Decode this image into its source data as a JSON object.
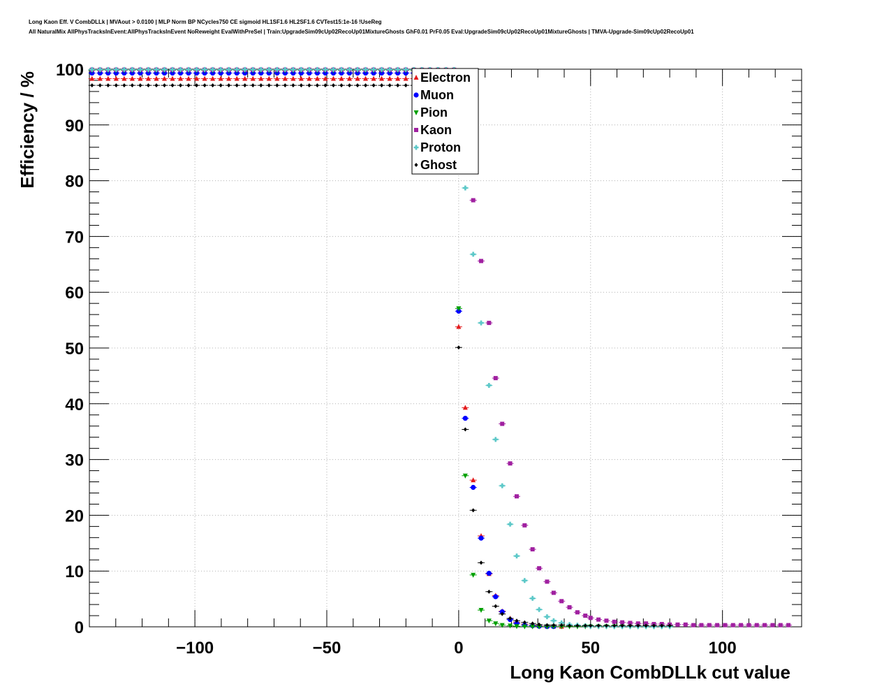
{
  "title_line1": "Long Kaon Eff. V CombDLLk | MVAout > 0.0100 | MLP Norm BP NCycles750 CE sigmoid HL1SF1.6 HL2SF1.6 CVTest15:1e-16 !UseReg",
  "title_line2": "All NaturalMix AllPhysTracksInEvent:AllPhysTracksInEvent NoReweight EvalWithPreSel | Train:UpgradeSim09cUp02RecoUp01MixtureGhosts GhF0.01 PrF0.05 Eval:UpgradeSim09cUp02RecoUp01MixtureGhosts | TMVA-Upgrade-Sim09cUp02RecoUp01",
  "chart_data": {
    "type": "scatter",
    "xlabel": "Long Kaon CombDLLk cut value",
    "ylabel": "Efficiency / %",
    "xlim": [
      -140,
      130
    ],
    "ylim": [
      0,
      100
    ],
    "x_ticks": [
      -100,
      -50,
      0,
      50,
      100
    ],
    "x_tick_labels": [
      "−100",
      "−50",
      "0",
      "50",
      "100"
    ],
    "y_ticks": [
      0,
      10,
      20,
      30,
      40,
      50,
      60,
      70,
      80,
      90,
      100
    ],
    "y_tick_labels": [
      "0",
      "10",
      "20",
      "30",
      "40",
      "50",
      "60",
      "70",
      "80",
      "90",
      "100"
    ],
    "grid": true,
    "legend_position": "top-center",
    "series": [
      {
        "name": "Electron",
        "color": "#e31a1c",
        "marker": "triangle-up",
        "flat_value": 98.3,
        "flat_until": -2.5,
        "points": [
          [
            0,
            53.8
          ],
          [
            2.5,
            39.3
          ],
          [
            5.5,
            26.3
          ],
          [
            8.5,
            16.3
          ],
          [
            11.5,
            9.5
          ],
          [
            14,
            5.6
          ],
          [
            16.5,
            2.8
          ],
          [
            19.5,
            1.5
          ],
          [
            22,
            0.8
          ],
          [
            25,
            0.5
          ],
          [
            28,
            0.3
          ],
          [
            30.5,
            0.2
          ],
          [
            33.5,
            0.1
          ],
          [
            36,
            0.1
          ],
          [
            39,
            0.05
          ]
        ]
      },
      {
        "name": "Muon",
        "color": "#0000ff",
        "marker": "circle",
        "flat_value": 99.3,
        "flat_until": -2.5,
        "points": [
          [
            0,
            56.6
          ],
          [
            2.5,
            37.4
          ],
          [
            5.5,
            25.0
          ],
          [
            8.5,
            15.9
          ],
          [
            11.5,
            9.6
          ],
          [
            14,
            5.4
          ],
          [
            16.5,
            2.7
          ],
          [
            19.5,
            1.3
          ],
          [
            22,
            0.6
          ],
          [
            25,
            0.3
          ],
          [
            28,
            0.2
          ],
          [
            30.5,
            0.1
          ],
          [
            33.5,
            0.05
          ],
          [
            36,
            0.05
          ]
        ]
      },
      {
        "name": "Pion",
        "color": "#00a000",
        "marker": "triangle-down",
        "flat_value": 99.8,
        "flat_until": -2.5,
        "points": [
          [
            0,
            57.1
          ],
          [
            2.5,
            27.1
          ],
          [
            5.5,
            9.3
          ],
          [
            8.5,
            3.0
          ],
          [
            11.5,
            1.1
          ],
          [
            14,
            0.6
          ],
          [
            16.5,
            0.3
          ],
          [
            19.5,
            0.2
          ],
          [
            22,
            0.1
          ],
          [
            25,
            0.05
          ],
          [
            28,
            0.05
          ],
          [
            30.5,
            0.05
          ],
          [
            33.5,
            0.05
          ],
          [
            36,
            0.05
          ],
          [
            39,
            0.05
          ],
          [
            42,
            0.05
          ],
          [
            45,
            0.05
          ],
          [
            48,
            0.05
          ],
          [
            50,
            0.05
          ],
          [
            53,
            0.05
          ],
          [
            56,
            0.05
          ],
          [
            59,
            0.05
          ],
          [
            62,
            0.05
          ],
          [
            65,
            0.05
          ],
          [
            68,
            0.05
          ],
          [
            71,
            0.05
          ],
          [
            74,
            0.05
          ],
          [
            77,
            0.05
          ],
          [
            80,
            0.05
          ]
        ]
      },
      {
        "name": "Kaon",
        "color": "#a020a0",
        "marker": "square",
        "flat_value": 99.9,
        "flat_until": 0,
        "points": [
          [
            5.5,
            76.5
          ],
          [
            8.5,
            65.6
          ],
          [
            11.5,
            54.5
          ],
          [
            14,
            44.6
          ],
          [
            16.5,
            36.4
          ],
          [
            19.5,
            29.3
          ],
          [
            22,
            23.4
          ],
          [
            25,
            18.2
          ],
          [
            28,
            13.9
          ],
          [
            30.5,
            10.5
          ],
          [
            33.5,
            8.1
          ],
          [
            36,
            6.1
          ],
          [
            39,
            4.6
          ],
          [
            42,
            3.5
          ],
          [
            45,
            2.6
          ],
          [
            48,
            2.0
          ],
          [
            50,
            1.6
          ],
          [
            53,
            1.3
          ],
          [
            56,
            1.1
          ],
          [
            59,
            0.9
          ],
          [
            62,
            0.8
          ],
          [
            65,
            0.7
          ],
          [
            68,
            0.6
          ],
          [
            71,
            0.6
          ],
          [
            74,
            0.5
          ],
          [
            77,
            0.5
          ],
          [
            80,
            0.4
          ],
          [
            83,
            0.4
          ],
          [
            86,
            0.4
          ],
          [
            89,
            0.3
          ],
          [
            92,
            0.3
          ],
          [
            95,
            0.3
          ],
          [
            98,
            0.3
          ],
          [
            101,
            0.3
          ],
          [
            104,
            0.3
          ],
          [
            107,
            0.3
          ],
          [
            110,
            0.3
          ],
          [
            113,
            0.3
          ],
          [
            116,
            0.3
          ],
          [
            119,
            0.3
          ],
          [
            122,
            0.3
          ],
          [
            125,
            0.3
          ]
        ]
      },
      {
        "name": "Proton",
        "color": "#5cc8c8",
        "marker": "cross",
        "flat_value": 99.95,
        "flat_until": 0,
        "points": [
          [
            2.5,
            78.7
          ],
          [
            5.5,
            66.8
          ],
          [
            8.5,
            54.5
          ],
          [
            11.5,
            43.3
          ],
          [
            14,
            33.6
          ],
          [
            16.5,
            25.3
          ],
          [
            19.5,
            18.4
          ],
          [
            22,
            12.7
          ],
          [
            25,
            8.3
          ],
          [
            28,
            5.1
          ],
          [
            30.5,
            3.1
          ],
          [
            33.5,
            1.8
          ],
          [
            36,
            1.1
          ],
          [
            39,
            0.7
          ],
          [
            42,
            0.4
          ],
          [
            45,
            0.3
          ],
          [
            48,
            0.2
          ],
          [
            50,
            0.1
          ],
          [
            53,
            0.1
          ],
          [
            56,
            0.1
          ],
          [
            59,
            0.05
          ],
          [
            62,
            0.05
          ],
          [
            65,
            0.05
          ],
          [
            68,
            0.05
          ],
          [
            71,
            0.05
          ],
          [
            74,
            0.05
          ],
          [
            77,
            0.05
          ],
          [
            80,
            0.05
          ]
        ]
      },
      {
        "name": "Ghost",
        "color": "#000000",
        "marker": "diamond",
        "flat_value": 97.1,
        "flat_until": -2.5,
        "points": [
          [
            0,
            50.1
          ],
          [
            2.5,
            35.4
          ],
          [
            5.5,
            20.9
          ],
          [
            8.5,
            11.5
          ],
          [
            11.5,
            6.3
          ],
          [
            14,
            3.7
          ],
          [
            16.5,
            2.3
          ],
          [
            19.5,
            1.5
          ],
          [
            22,
            1.1
          ],
          [
            25,
            0.8
          ],
          [
            28,
            0.6
          ],
          [
            30.5,
            0.4
          ],
          [
            33.5,
            0.3
          ],
          [
            36,
            0.3
          ],
          [
            39,
            0.3
          ],
          [
            42,
            0.2
          ],
          [
            45,
            0.2
          ],
          [
            48,
            0.2
          ],
          [
            50,
            0.2
          ],
          [
            53,
            0.2
          ],
          [
            56,
            0.2
          ],
          [
            59,
            0.2
          ],
          [
            62,
            0.2
          ],
          [
            65,
            0.2
          ],
          [
            68,
            0.2
          ],
          [
            71,
            0.2
          ],
          [
            74,
            0.2
          ],
          [
            77,
            0.2
          ],
          [
            80,
            0.2
          ]
        ]
      }
    ]
  }
}
